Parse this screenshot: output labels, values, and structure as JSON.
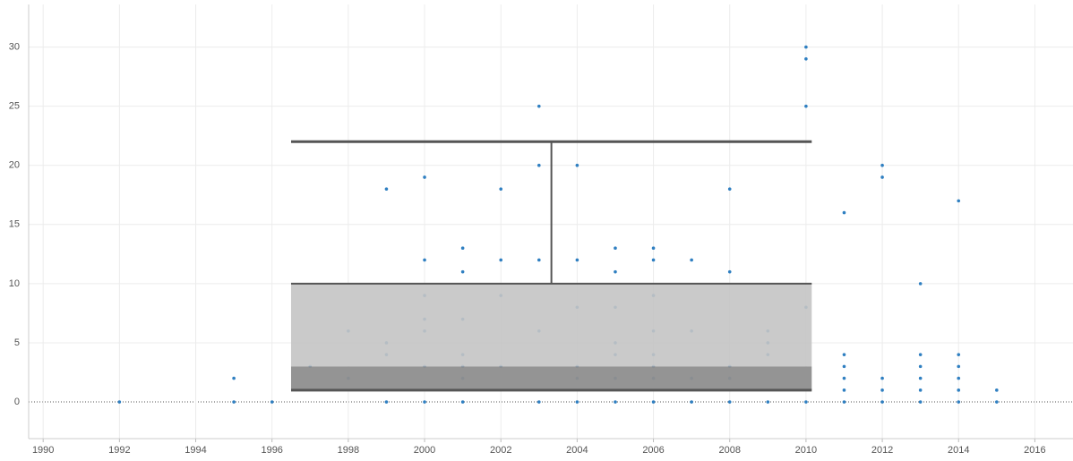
{
  "chart_data": {
    "type": "scatter",
    "xlim": [
      1989.62,
      2017.0
    ],
    "ylim": [
      -3.1,
      33.6
    ],
    "xticks": [
      1990,
      1992,
      1994,
      1996,
      1998,
      2000,
      2002,
      2004,
      2006,
      2008,
      2010,
      2012,
      2014,
      2016
    ],
    "yticks": [
      0,
      5,
      10,
      15,
      20,
      25,
      30
    ],
    "grid": true,
    "series": [
      {
        "color": "#2f7fc1",
        "x": [
          1992,
          1995,
          1995,
          1996,
          1997,
          1998,
          1998,
          1999,
          1999,
          1999,
          1999,
          2000,
          2000,
          2000,
          2000,
          2000,
          2000,
          2000,
          2001,
          2001,
          2001,
          2001,
          2001,
          2001,
          2001,
          2002,
          2002,
          2002,
          2002,
          2003,
          2003,
          2003,
          2003,
          2003,
          2004,
          2004,
          2004,
          2004,
          2004,
          2004,
          2005,
          2005,
          2005,
          2005,
          2005,
          2005,
          2005,
          2006,
          2006,
          2006,
          2006,
          2006,
          2006,
          2006,
          2006,
          2007,
          2007,
          2007,
          2007,
          2008,
          2008,
          2008,
          2008,
          2008,
          2009,
          2009,
          2009,
          2009,
          2010,
          2010,
          2010,
          2010,
          2010,
          2011,
          2011,
          2011,
          2011,
          2011,
          2011,
          2012,
          2012,
          2012,
          2012,
          2012,
          2013,
          2013,
          2013,
          2013,
          2013,
          2013,
          2014,
          2014,
          2014,
          2014,
          2014,
          2014,
          2015,
          2015
        ],
        "y": [
          0,
          2,
          0,
          0,
          3,
          6,
          2,
          18,
          5,
          4,
          0,
          19,
          12,
          9,
          7,
          6,
          3,
          0,
          13,
          11,
          7,
          4,
          3,
          2,
          0,
          18,
          12,
          9,
          3,
          25,
          20,
          12,
          6,
          0,
          20,
          12,
          8,
          3,
          2,
          0,
          13,
          11,
          8,
          5,
          4,
          2,
          0,
          13,
          12,
          9,
          6,
          4,
          3,
          2,
          0,
          12,
          6,
          2,
          0,
          18,
          11,
          3,
          2,
          0,
          6,
          5,
          4,
          0,
          30,
          29,
          25,
          8,
          0,
          16,
          4,
          3,
          2,
          1,
          0,
          20,
          19,
          2,
          1,
          0,
          10,
          4,
          3,
          2,
          1,
          0,
          17,
          4,
          3,
          2,
          1,
          0,
          1,
          0
        ]
      }
    ],
    "box": {
      "xrange": [
        1996.5,
        2010.15
      ],
      "q1": 1,
      "median": 3,
      "q3": 10,
      "whisker_high": 22
    }
  }
}
